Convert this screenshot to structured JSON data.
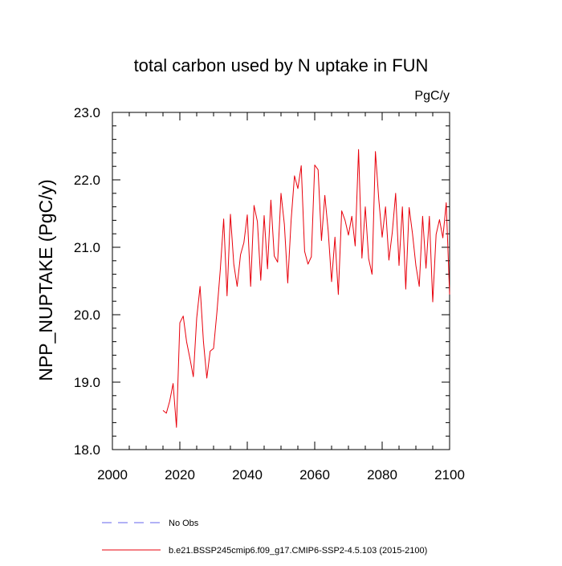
{
  "chart_data": {
    "type": "line",
    "title": "total carbon used by N uptake in FUN",
    "units_label": "PgC/y",
    "ylabel": "NPP_NUPTAKE  (PgC/y)",
    "xlabel": "",
    "xlim": [
      2000,
      2100
    ],
    "ylim": [
      18.0,
      23.0
    ],
    "x_ticks": [
      2000,
      2020,
      2040,
      2060,
      2080,
      2100
    ],
    "x_tick_labels": [
      "2000",
      "2020",
      "2040",
      "2060",
      "2080",
      "2100"
    ],
    "y_ticks": [
      18.0,
      19.0,
      20.0,
      21.0,
      22.0,
      23.0
    ],
    "y_tick_labels": [
      "18.0",
      "19.0",
      "20.0",
      "21.0",
      "22.0",
      "23.0"
    ],
    "grid": false,
    "legend_position": "bottom-left",
    "series": [
      {
        "name": "b.e21.BSSP245cmip6.f09_g17.CMIP6-SSP2-4.5.103 (2015-2100)",
        "color": "#e8000b",
        "style": "solid",
        "x": [
          2015,
          2016,
          2017,
          2018,
          2019,
          2020,
          2021,
          2022,
          2023,
          2024,
          2025,
          2026,
          2027,
          2028,
          2029,
          2030,
          2031,
          2032,
          2033,
          2034,
          2035,
          2036,
          2037,
          2038,
          2039,
          2040,
          2041,
          2042,
          2043,
          2044,
          2045,
          2046,
          2047,
          2048,
          2049,
          2050,
          2051,
          2052,
          2053,
          2054,
          2055,
          2056,
          2057,
          2058,
          2059,
          2060,
          2061,
          2062,
          2063,
          2064,
          2065,
          2066,
          2067,
          2068,
          2069,
          2070,
          2071,
          2072,
          2073,
          2074,
          2075,
          2076,
          2077,
          2078,
          2079,
          2080,
          2081,
          2082,
          2083,
          2084,
          2085,
          2086,
          2087,
          2088,
          2089,
          2090,
          2091,
          2092,
          2093,
          2094,
          2095,
          2096,
          2097,
          2098,
          2099,
          2100
        ],
        "values": [
          18.58,
          18.54,
          18.72,
          18.98,
          18.33,
          19.88,
          19.98,
          19.6,
          19.35,
          19.08,
          19.95,
          20.42,
          19.6,
          19.06,
          19.46,
          19.5,
          20.04,
          20.67,
          21.42,
          20.28,
          21.49,
          20.75,
          20.42,
          20.89,
          21.07,
          21.48,
          20.42,
          21.62,
          21.38,
          20.51,
          21.47,
          20.68,
          21.7,
          20.87,
          20.78,
          21.8,
          21.34,
          20.47,
          21.4,
          22.06,
          21.87,
          22.21,
          20.94,
          20.75,
          20.86,
          22.22,
          22.15,
          21.1,
          21.77,
          21.24,
          20.49,
          21.15,
          20.3,
          21.54,
          21.4,
          21.18,
          21.46,
          21.02,
          22.45,
          20.84,
          21.6,
          20.83,
          20.6,
          22.42,
          21.71,
          21.15,
          21.6,
          20.81,
          21.22,
          21.8,
          20.73,
          21.6,
          20.38,
          21.59,
          21.2,
          20.73,
          20.42,
          21.46,
          20.69,
          21.46,
          20.19,
          21.19,
          21.41,
          21.14,
          21.66,
          20.3
        ]
      },
      {
        "name": "No Obs",
        "color": "#6666ee",
        "style": "dashed",
        "x": [],
        "values": []
      }
    ]
  }
}
